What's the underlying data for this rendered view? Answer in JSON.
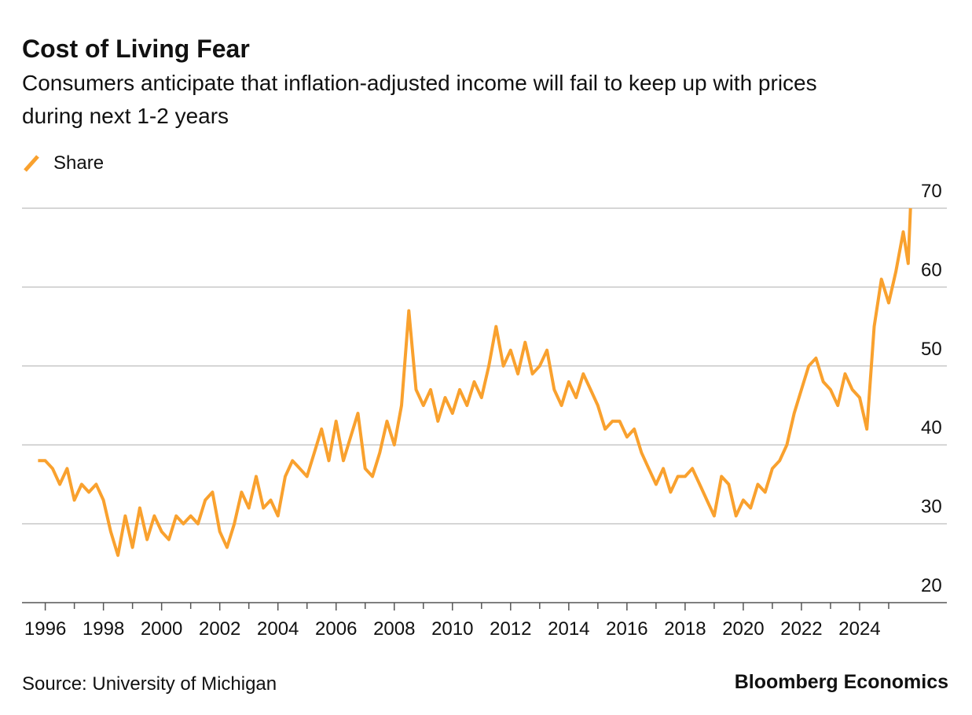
{
  "chart_data": {
    "type": "line",
    "title": "Cost of Living Fear",
    "subtitle": "Consumers anticipate that inflation-adjusted income will fail to keep up with prices during next 1-2 years",
    "source": "Source: University of Michigan",
    "credit": "Bloomberg Economics",
    "x": [
      1995.75,
      1996,
      1996.25,
      1996.5,
      1996.75,
      1997,
      1997.25,
      1997.5,
      1997.75,
      1998,
      1998.25,
      1998.5,
      1998.75,
      1999,
      1999.25,
      1999.5,
      1999.75,
      2000,
      2000.25,
      2000.5,
      2000.75,
      2001,
      2001.25,
      2001.5,
      2001.75,
      2002,
      2002.25,
      2002.5,
      2002.75,
      2003,
      2003.25,
      2003.5,
      2003.75,
      2004,
      2004.25,
      2004.5,
      2004.75,
      2005,
      2005.25,
      2005.5,
      2005.75,
      2006,
      2006.25,
      2006.5,
      2006.75,
      2007,
      2007.25,
      2007.5,
      2007.75,
      2008,
      2008.25,
      2008.5,
      2008.75,
      2009,
      2009.25,
      2009.5,
      2009.75,
      2010,
      2010.25,
      2010.5,
      2010.75,
      2011,
      2011.25,
      2011.5,
      2011.75,
      2012,
      2012.25,
      2012.5,
      2012.75,
      2013,
      2013.25,
      2013.5,
      2013.75,
      2014,
      2014.25,
      2014.5,
      2014.75,
      2015,
      2015.25,
      2015.5,
      2015.75,
      2016,
      2016.25,
      2016.5,
      2016.75,
      2017,
      2017.25,
      2017.5,
      2017.75,
      2018,
      2018.25,
      2018.5,
      2018.75,
      2019,
      2019.25,
      2019.5,
      2019.75,
      2020,
      2020.25,
      2020.5,
      2020.75,
      2021,
      2021.25,
      2021.5,
      2021.75,
      2022,
      2022.25,
      2022.5,
      2022.75,
      2023,
      2023.25,
      2023.5,
      2023.75,
      2024,
      2024.25,
      2024.5,
      2024.75,
      2025,
      2025.25,
      2025.5,
      2025.67,
      2025.75
    ],
    "series": [
      {
        "name": "Share",
        "color": "#f9a12e",
        "values": [
          38,
          38,
          37,
          35,
          37,
          33,
          35,
          34,
          35,
          33,
          29,
          26,
          31,
          27,
          32,
          28,
          31,
          29,
          28,
          31,
          30,
          31,
          30,
          33,
          34,
          29,
          27,
          30,
          34,
          32,
          36,
          32,
          33,
          31,
          36,
          38,
          37,
          36,
          39,
          42,
          38,
          43,
          38,
          41,
          44,
          37,
          36,
          39,
          43,
          40,
          45,
          57,
          47,
          45,
          47,
          43,
          46,
          44,
          47,
          45,
          48,
          46,
          50,
          55,
          50,
          52,
          49,
          53,
          49,
          50,
          52,
          47,
          45,
          48,
          46,
          49,
          47,
          45,
          42,
          43,
          43,
          41,
          42,
          39,
          37,
          35,
          37,
          34,
          36,
          36,
          37,
          35,
          33,
          31,
          36,
          35,
          31,
          33,
          32,
          35,
          34,
          37,
          38,
          40,
          44,
          47,
          50,
          51,
          48,
          47,
          45,
          49,
          47,
          46,
          42,
          55,
          61,
          58,
          62,
          67,
          63,
          70
        ]
      }
    ],
    "xlim": [
      1995.2,
      2027.0
    ],
    "xticks": [
      1996,
      1998,
      2000,
      2002,
      2004,
      2006,
      2008,
      2010,
      2012,
      2014,
      2016,
      2018,
      2020,
      2022,
      2024
    ],
    "xticks_minor": [
      1997,
      1999,
      2001,
      2003,
      2005,
      2007,
      2009,
      2011,
      2013,
      2015,
      2017,
      2019,
      2021,
      2023,
      2025
    ],
    "ylim": [
      20,
      70
    ],
    "yticks": [
      20,
      30,
      40,
      50,
      60,
      70
    ],
    "grid": true
  }
}
